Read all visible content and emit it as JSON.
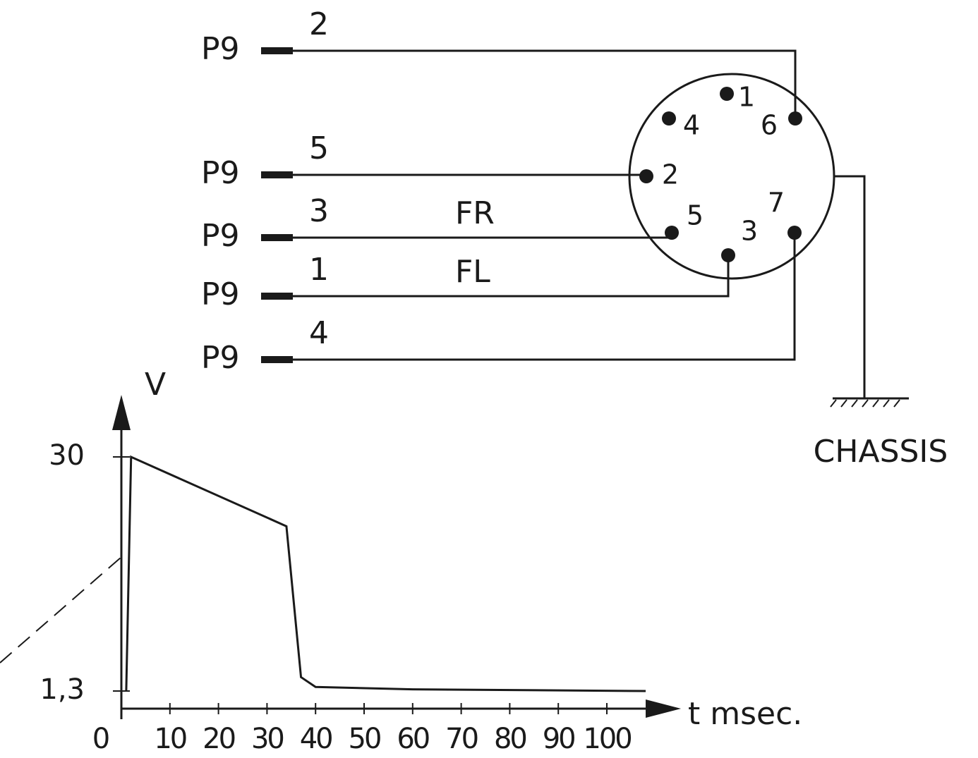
{
  "wiring": {
    "connectors": [
      {
        "label": "P9",
        "wire": "2"
      },
      {
        "label": "P9",
        "wire": "5"
      },
      {
        "label": "P9",
        "wire": "3",
        "signal": "FR"
      },
      {
        "label": "P9",
        "wire": "1",
        "signal": "FL"
      },
      {
        "label": "P9",
        "wire": "4"
      }
    ],
    "pins": [
      "1",
      "2",
      "3",
      "4",
      "5",
      "6",
      "7"
    ],
    "ground": "CHASSIS"
  },
  "graph": {
    "ylabel": "V",
    "xlabel": "t msec.",
    "xlim": [
      0,
      108
    ],
    "xticks": [
      0,
      10,
      20,
      30,
      40,
      50,
      60,
      70,
      80,
      90,
      100
    ],
    "yticks": [
      {
        "value": 1.3,
        "label": "1,3"
      },
      30
    ],
    "curve": {
      "x": [
        1,
        2,
        34,
        37,
        40,
        60,
        108
      ],
      "values": [
        1.3,
        30,
        21.5,
        3,
        1.8,
        1.5,
        1.3
      ]
    }
  }
}
